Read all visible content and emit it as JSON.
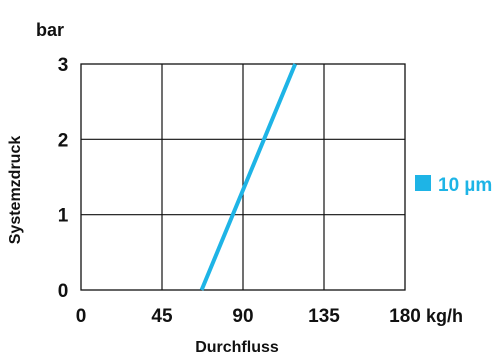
{
  "chart_data": {
    "type": "line",
    "title": "",
    "xlabel": "Durchfluss",
    "ylabel": "Systemzdruck",
    "x_unit": "kg/h",
    "y_unit": "bar",
    "xlim": [
      0,
      180
    ],
    "ylim": [
      0,
      3
    ],
    "x_ticks": [
      "0",
      "45",
      "90",
      "135",
      "180"
    ],
    "y_ticks": [
      "0",
      "1",
      "2",
      "3"
    ],
    "grid": true,
    "legend_position": "right",
    "series": [
      {
        "name": "10 µm",
        "color": "#1EB4E6",
        "points": [
          {
            "x": 67,
            "y": 0
          },
          {
            "x": 119,
            "y": 3
          }
        ]
      }
    ]
  }
}
